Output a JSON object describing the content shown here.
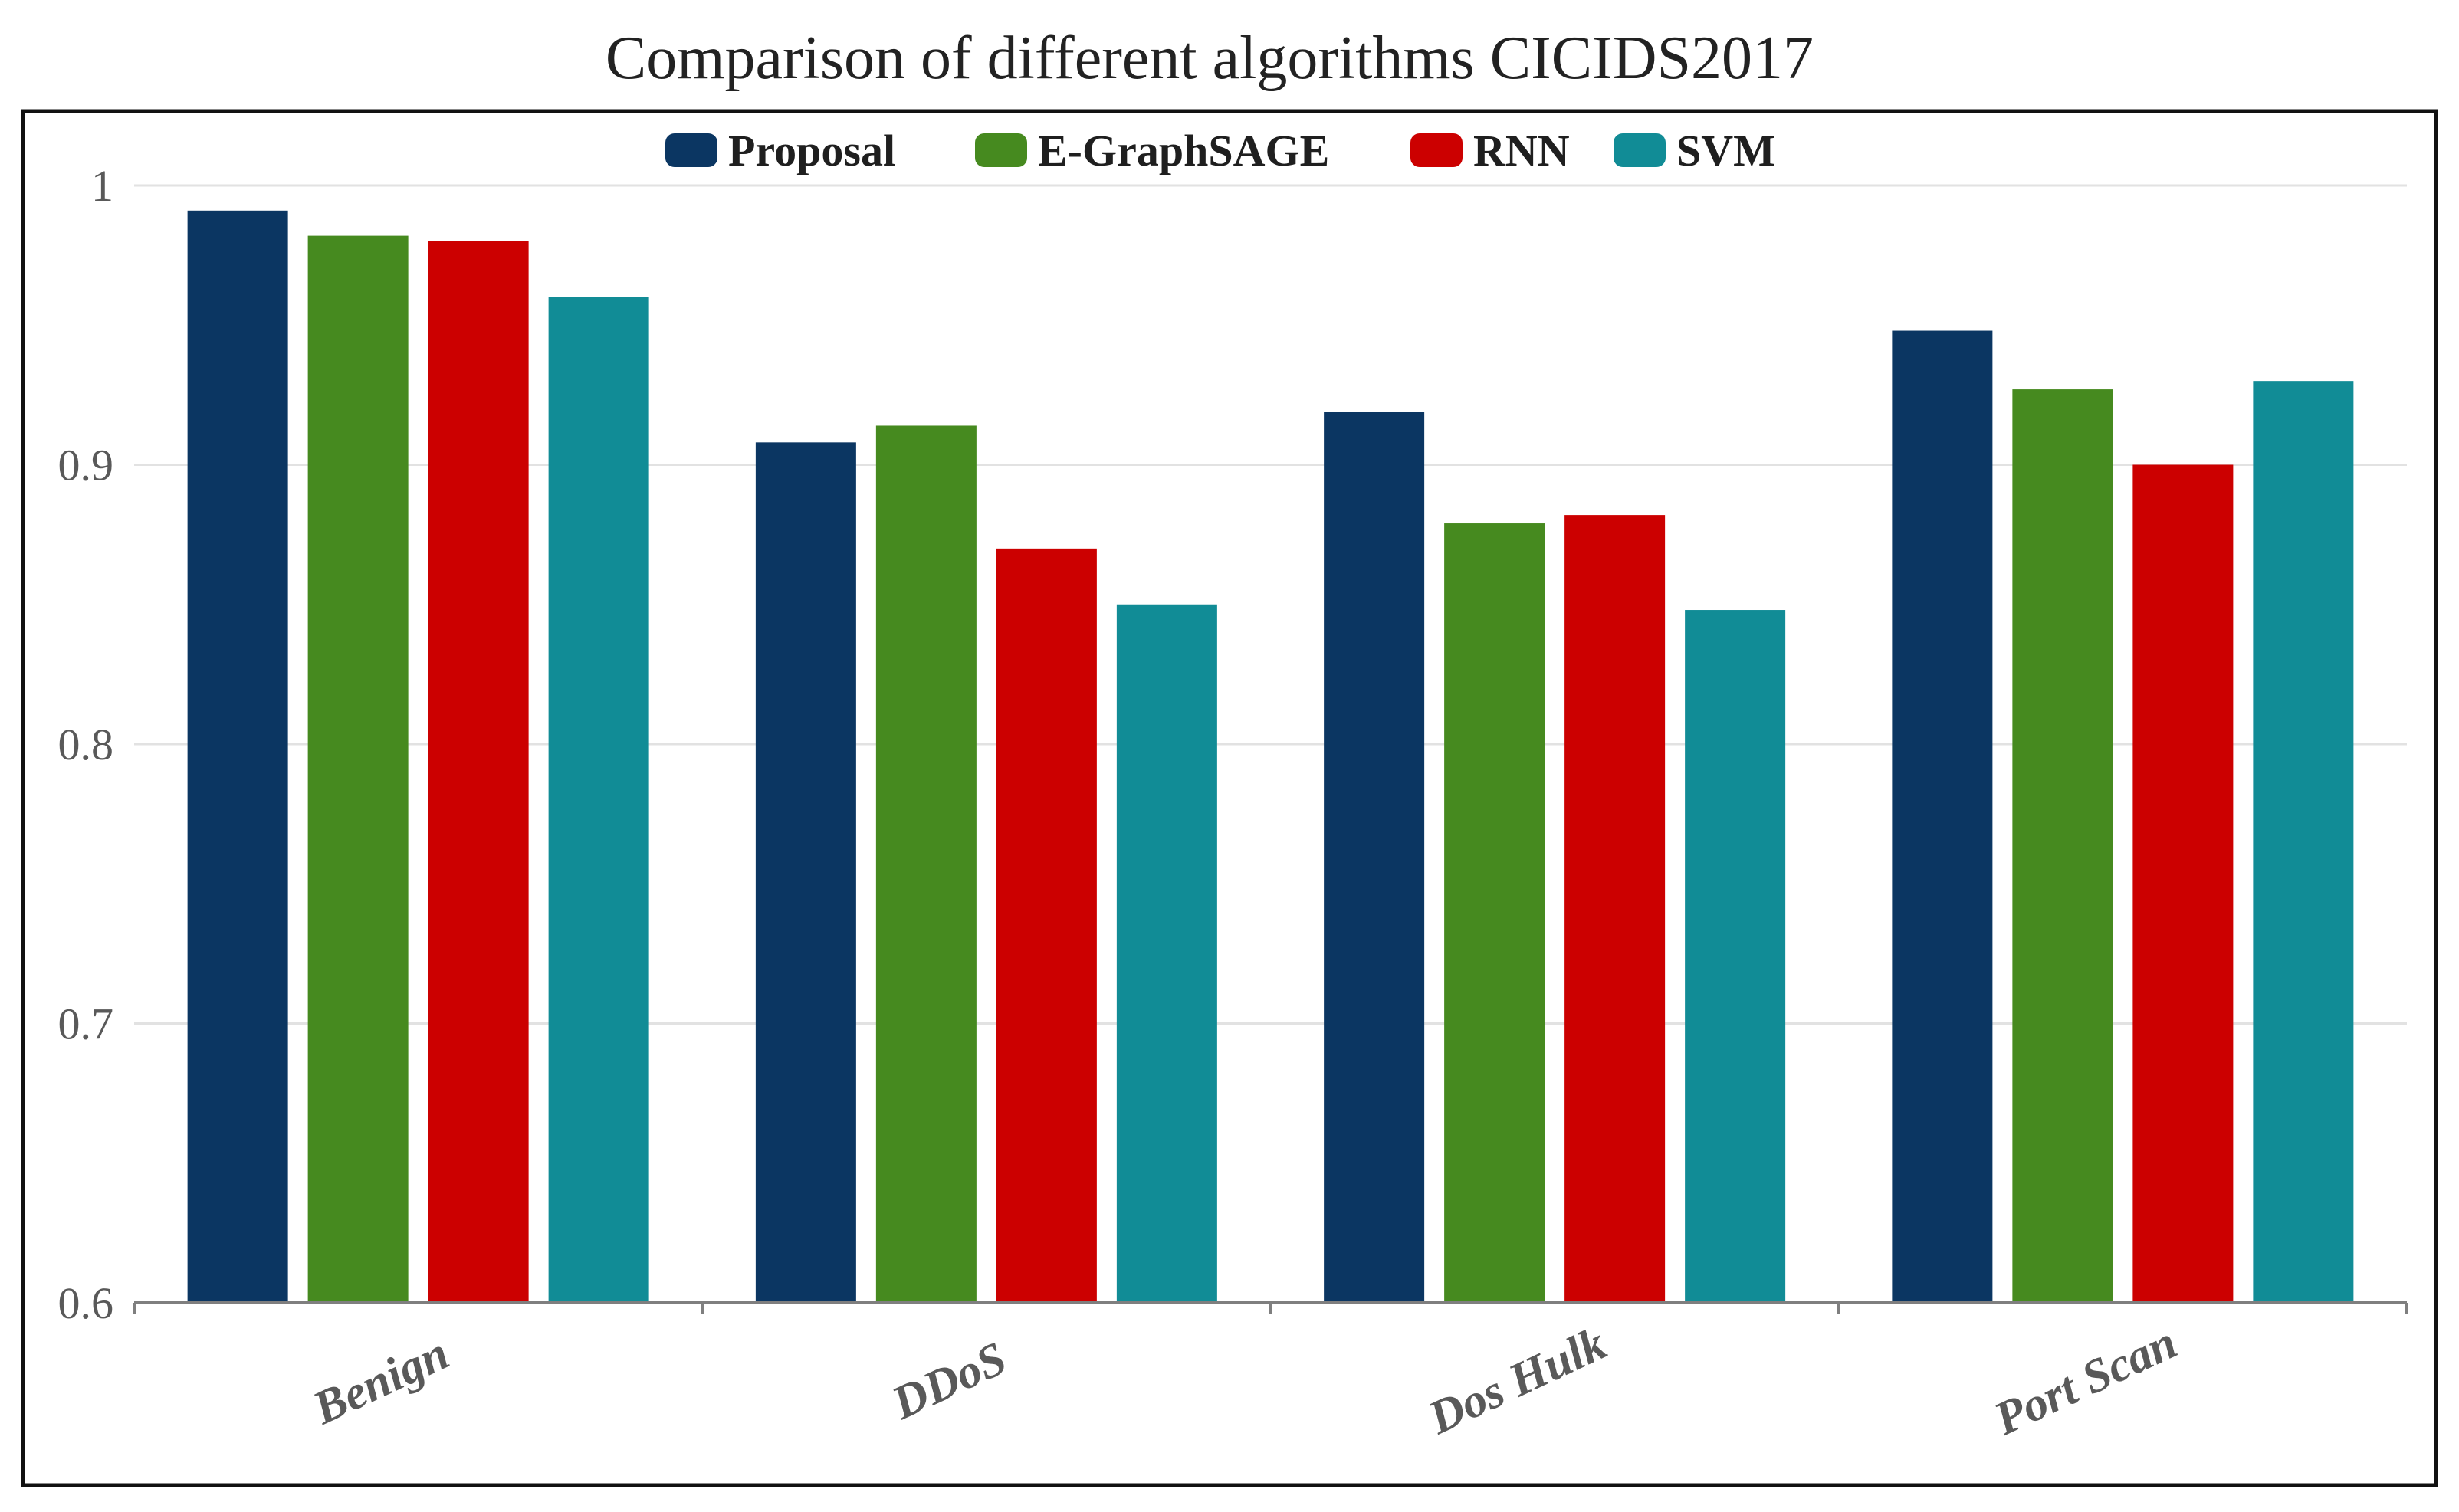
{
  "chart_data": {
    "type": "bar",
    "title": "Comparison of different algorithms CICIDS2017",
    "xlabel": "",
    "ylabel": "",
    "ylim": [
      0.6,
      1.0
    ],
    "yticks": [
      0.6,
      0.7,
      0.8,
      0.9,
      1.0
    ],
    "ytick_labels": [
      "0.6",
      "0.7",
      "0.8",
      "0.9",
      "1"
    ],
    "grid": true,
    "legend_position": "top-center",
    "categories": [
      "Benign",
      "DDoS",
      "Dos Hulk",
      "Port Scan"
    ],
    "series": [
      {
        "name": "Proposal",
        "color": "#0b3662",
        "values": [
          0.991,
          0.908,
          0.919,
          0.948
        ]
      },
      {
        "name": "E-GraphSAGE",
        "color": "#468a1f",
        "values": [
          0.982,
          0.914,
          0.879,
          0.927
        ]
      },
      {
        "name": "RNN",
        "color": "#cc0000",
        "values": [
          0.98,
          0.87,
          0.882,
          0.9
        ]
      },
      {
        "name": "SVM",
        "color": "#118c96",
        "values": [
          0.96,
          0.85,
          0.848,
          0.93
        ]
      }
    ]
  }
}
